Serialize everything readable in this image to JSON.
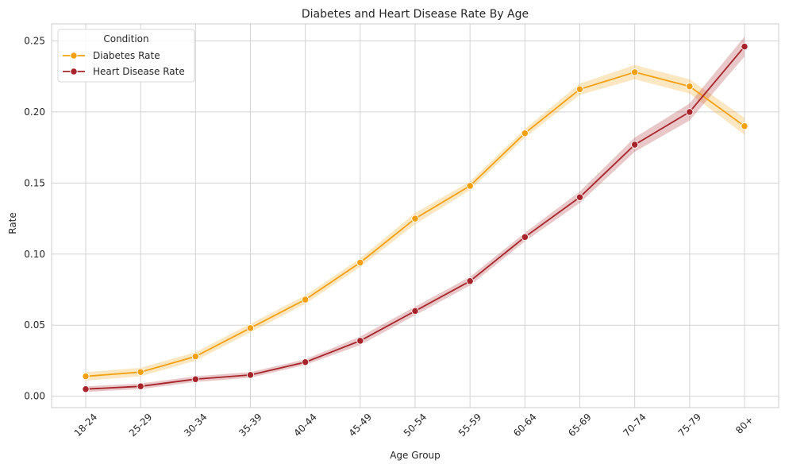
{
  "chart_data": {
    "type": "line",
    "title": "Diabetes and Heart Disease Rate By Age",
    "xlabel": "Age Group",
    "ylabel": "Rate",
    "categories": [
      "18-24",
      "25-29",
      "30-34",
      "35-39",
      "40-44",
      "45-49",
      "50-54",
      "55-59",
      "60-64",
      "65-69",
      "70-74",
      "75-79",
      "80+"
    ],
    "ylim": [
      -0.008,
      0.262
    ],
    "yticks": [
      "0.00",
      "0.05",
      "0.10",
      "0.15",
      "0.20",
      "0.25"
    ],
    "grid": true,
    "legend": {
      "title": "Condition",
      "placement": "top-left"
    },
    "series": [
      {
        "name": "Diabetes Rate",
        "color": "#f5a00f",
        "band_color": "#fde3b0",
        "values": [
          0.014,
          0.017,
          0.028,
          0.048,
          0.068,
          0.094,
          0.125,
          0.148,
          0.185,
          0.216,
          0.228,
          0.218,
          0.19
        ],
        "ci_halfwidth": [
          0.003,
          0.003,
          0.003,
          0.003,
          0.003,
          0.003,
          0.004,
          0.003,
          0.003,
          0.004,
          0.005,
          0.005,
          0.006
        ]
      },
      {
        "name": "Heart Disease Rate",
        "color": "#a7242a",
        "band_color": "#e2b5b7",
        "values": [
          0.005,
          0.007,
          0.012,
          0.015,
          0.024,
          0.039,
          0.06,
          0.081,
          0.112,
          0.14,
          0.177,
          0.2,
          0.246
        ],
        "ci_halfwidth": [
          0.002,
          0.002,
          0.002,
          0.002,
          0.002,
          0.003,
          0.003,
          0.003,
          0.003,
          0.004,
          0.005,
          0.006,
          0.007
        ]
      }
    ]
  }
}
